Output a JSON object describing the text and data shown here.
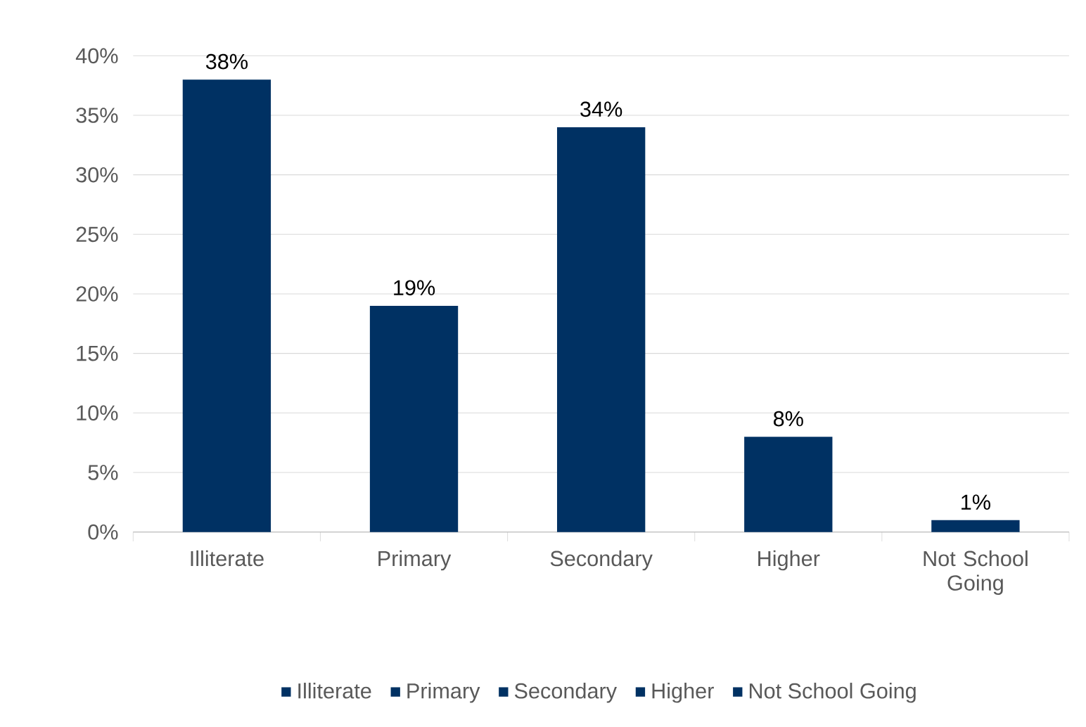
{
  "chart_data": {
    "type": "bar",
    "categories": [
      "Illiterate",
      "Primary",
      "Secondary",
      "Higher",
      "Not School Going"
    ],
    "series": [
      {
        "name": "Illiterate",
        "color": "#003163",
        "values": [
          38,
          null,
          null,
          null,
          null
        ],
        "value_labels": [
          "38%",
          null,
          null,
          null,
          null
        ]
      },
      {
        "name": "Primary",
        "color": "#003163",
        "values": [
          null,
          19,
          null,
          null,
          null
        ],
        "value_labels": [
          null,
          "19%",
          null,
          null,
          null
        ]
      },
      {
        "name": "Secondary",
        "color": "#003163",
        "values": [
          null,
          null,
          34,
          null,
          null
        ],
        "value_labels": [
          null,
          null,
          "34%",
          null,
          null
        ]
      },
      {
        "name": "Higher",
        "color": "#003163",
        "values": [
          null,
          null,
          null,
          8,
          null
        ],
        "value_labels": [
          null,
          null,
          null,
          "8%",
          null
        ]
      },
      {
        "name": "Not School Going",
        "color": "#003163",
        "values": [
          null,
          null,
          null,
          null,
          1
        ],
        "value_labels": [
          null,
          null,
          null,
          null,
          "1%"
        ]
      }
    ],
    "ylim": [
      0,
      40
    ],
    "yticks": [
      {
        "value": 0,
        "label": "0%"
      },
      {
        "value": 5,
        "label": "5%"
      },
      {
        "value": 10,
        "label": "10%"
      },
      {
        "value": 15,
        "label": "15%"
      },
      {
        "value": 20,
        "label": "20%"
      },
      {
        "value": 25,
        "label": "25%"
      },
      {
        "value": 30,
        "label": "30%"
      },
      {
        "value": 35,
        "label": "35%"
      },
      {
        "value": 40,
        "label": "40%"
      }
    ],
    "grid": "y",
    "legend": "bottom"
  }
}
